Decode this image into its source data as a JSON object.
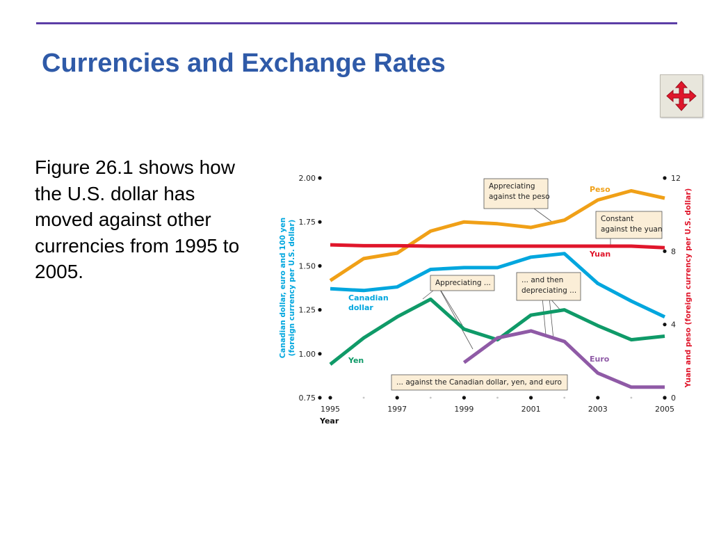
{
  "slide": {
    "title": "Currencies and Exchange Rates",
    "body": "Figure 26.1 shows how the U.S. dollar has moved against other currencies from 1995 to 2005.",
    "nav_icon": "four-way-arrow-icon",
    "colors": {
      "title": "#2f5aa8",
      "rule": "#5b3ea6",
      "nav_arrow": "#e0162b"
    }
  },
  "chart_data": {
    "type": "line",
    "xlabel": "Year",
    "x_ticks": [
      1995,
      1997,
      1999,
      2001,
      2003,
      2005
    ],
    "xlim": [
      1995,
      2005
    ],
    "ylabel_left": "Canadian dollar, euro and 100 yen (foreign currency per U.S. dollar)",
    "ylabel_right": "Yuan and peso (foreign currency per U.S. dollar)",
    "left_axis": {
      "ylim": [
        0.75,
        2.0
      ],
      "ticks": [
        "0.75",
        "1.00",
        "1.25",
        "1.50",
        "1.75",
        "2.00"
      ],
      "color": "#00a6de"
    },
    "right_axis": {
      "ylim": [
        0,
        12
      ],
      "ticks": [
        "0",
        "4",
        "8",
        "12"
      ],
      "color": "#e0162b"
    },
    "series": [
      {
        "name": "Peso",
        "axis": "right",
        "color": "#f0a017",
        "x": [
          1995,
          1996,
          1997,
          1998,
          1999,
          2000,
          2001,
          2002,
          2003,
          2004,
          2005
        ],
        "values": [
          6.4,
          7.6,
          7.9,
          9.1,
          9.6,
          9.5,
          9.3,
          9.7,
          10.8,
          11.3,
          10.9
        ]
      },
      {
        "name": "Yuan",
        "axis": "right",
        "color": "#e0162b",
        "x": [
          1995,
          1996,
          1997,
          1998,
          1999,
          2000,
          2001,
          2002,
          2003,
          2004,
          2005
        ],
        "values": [
          8.35,
          8.3,
          8.3,
          8.28,
          8.28,
          8.28,
          8.28,
          8.28,
          8.28,
          8.28,
          8.19
        ]
      },
      {
        "name": "Canadian dollar",
        "axis": "left",
        "color": "#00a6de",
        "x": [
          1995,
          1996,
          1997,
          1998,
          1999,
          2000,
          2001,
          2002,
          2003,
          2004,
          2005
        ],
        "values": [
          1.37,
          1.36,
          1.38,
          1.48,
          1.49,
          1.49,
          1.55,
          1.57,
          1.4,
          1.3,
          1.21
        ]
      },
      {
        "name": "Yen",
        "axis": "left",
        "color": "#0f9a68",
        "x": [
          1995,
          1996,
          1997,
          1998,
          1999,
          2000,
          2001,
          2002,
          2003,
          2004,
          2005
        ],
        "values": [
          0.94,
          1.09,
          1.21,
          1.31,
          1.14,
          1.08,
          1.22,
          1.25,
          1.16,
          1.08,
          1.1
        ]
      },
      {
        "name": "Euro",
        "axis": "left",
        "color": "#8f5aa6",
        "x": [
          1999,
          2000,
          2001,
          2002,
          2003,
          2004,
          2005
        ],
        "values": [
          0.95,
          1.09,
          1.13,
          1.07,
          0.89,
          0.81,
          0.81
        ]
      }
    ],
    "series_labels": [
      {
        "text": "Peso",
        "color": "#f0a017"
      },
      {
        "text": "Yuan",
        "color": "#e0162b"
      },
      {
        "text": "Canadian",
        "color": "#00a6de"
      },
      {
        "text": "dollar",
        "color": "#00a6de"
      },
      {
        "text": "Yen",
        "color": "#0f9a68"
      },
      {
        "text": "Euro",
        "color": "#8f5aa6"
      }
    ],
    "annotations": [
      {
        "lines": [
          "Appreciating",
          "against the peso"
        ]
      },
      {
        "lines": [
          "Constant",
          "against the yuan"
        ]
      },
      {
        "lines": [
          "Appreciating ..."
        ]
      },
      {
        "lines": [
          "... and then",
          "depreciating ..."
        ]
      },
      {
        "lines": [
          "... against the Canadian dollar, yen, and euro"
        ]
      }
    ],
    "annotation_box_color": "#fbeed7"
  }
}
